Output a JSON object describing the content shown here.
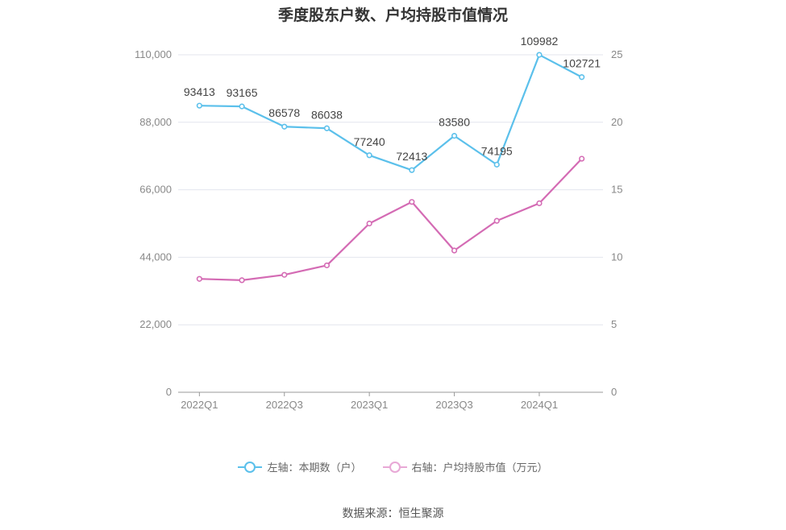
{
  "chart_data": {
    "type": "line",
    "title": "季度股东户数、户均持股市值情况",
    "categories": [
      "2022Q1",
      "2022Q2",
      "2022Q3",
      "2022Q4",
      "2023Q1",
      "2023Q2",
      "2023Q3",
      "2023Q4",
      "2024Q1",
      "2024Q2"
    ],
    "x_tick_labels": [
      "2022Q1",
      "",
      "2022Q3",
      "",
      "2023Q1",
      "",
      "2023Q3",
      "",
      "2024Q1",
      ""
    ],
    "left_axis": {
      "ylim": [
        0,
        110000
      ],
      "ticks": [
        "0",
        "22,000",
        "44,000",
        "66,000",
        "88,000",
        "110,000"
      ],
      "tick_values": [
        0,
        22000,
        44000,
        66000,
        88000,
        110000
      ]
    },
    "right_axis": {
      "ylim": [
        0,
        25
      ],
      "ticks": [
        "0",
        "5",
        "10",
        "15",
        "20",
        "25"
      ],
      "tick_values": [
        0,
        5,
        10,
        15,
        20,
        25
      ]
    },
    "series": [
      {
        "name": "左轴：本期数（户）",
        "axis": "left",
        "color": "#5bc0eb",
        "values": [
          93413,
          93165,
          86578,
          86038,
          77240,
          72413,
          83580,
          74195,
          109982,
          102721
        ],
        "labels": [
          "93413",
          "93165",
          "86578",
          "86038",
          "77240",
          "72413",
          "83580",
          "74195",
          "109982",
          "102721"
        ]
      },
      {
        "name": "右轴：户均持股市值（万元）",
        "axis": "right",
        "color": "#d46bb4",
        "values": [
          8.4,
          8.3,
          8.7,
          9.4,
          12.5,
          14.1,
          10.5,
          12.7,
          14.0,
          17.3
        ]
      }
    ],
    "grid": true,
    "legend_position": "bottom"
  },
  "source": "数据来源：恒生聚源"
}
